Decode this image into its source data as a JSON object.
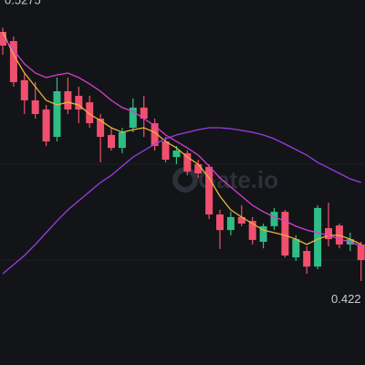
{
  "chart_data": {
    "type": "candlestick",
    "watermark": "Gate.io",
    "annotations": [
      "0.5275",
      "0.422"
    ],
    "ylim": [
      0.387,
      0.539
    ],
    "up_color": "#2ebd85",
    "down_color": "#f0506e",
    "categories": [
      null,
      null,
      null,
      null,
      null,
      null,
      null,
      null,
      null,
      null,
      null,
      null,
      null,
      null,
      null,
      null,
      null,
      null,
      null,
      null,
      null,
      null,
      null,
      null,
      null,
      null,
      null,
      null,
      null,
      null,
      null,
      null,
      null,
      null
    ],
    "open": [
      0.5257,
      0.5219,
      0.5056,
      0.4972,
      0.4934,
      0.482,
      0.501,
      0.4991,
      0.4964,
      0.4896,
      0.4828,
      0.4774,
      0.4858,
      0.4942,
      0.4877,
      0.4801,
      0.4736,
      0.4752,
      0.4706,
      0.4695,
      0.4497,
      0.4432,
      0.4486,
      0.447,
      0.4383,
      0.4448,
      0.4508,
      0.4318,
      0.4345,
      0.428,
      0.444,
      0.4451,
      0.4372,
      0.4372
    ],
    "high": [
      0.5275,
      0.5238,
      0.5086,
      0.5048,
      0.4953,
      0.5067,
      0.5067,
      0.5029,
      0.4991,
      0.4915,
      0.4858,
      0.4858,
      0.498,
      0.4991,
      0.4896,
      0.482,
      0.4782,
      0.4763,
      0.4725,
      0.4706,
      0.4516,
      0.4508,
      0.4535,
      0.4486,
      0.4459,
      0.4524,
      0.4516,
      0.441,
      0.4364,
      0.4535,
      0.4546,
      0.4459,
      0.4421,
      0.4383
    ],
    "low": [
      0.5162,
      0.5029,
      0.4915,
      0.4896,
      0.4782,
      0.4801,
      0.4915,
      0.4877,
      0.4858,
      0.4714,
      0.4763,
      0.4752,
      0.4839,
      0.482,
      0.4763,
      0.4714,
      0.4706,
      0.466,
      0.4649,
      0.4478,
      0.4353,
      0.441,
      0.4448,
      0.4372,
      0.4356,
      0.4432,
      0.4318,
      0.4303,
      0.425,
      0.4269,
      0.4364,
      0.4356,
      0.4345,
      0.422
    ],
    "close": [
      0.52,
      0.5048,
      0.4972,
      0.4915,
      0.4801,
      0.501,
      0.4934,
      0.4934,
      0.4877,
      0.482,
      0.4774,
      0.4839,
      0.4942,
      0.4896,
      0.4782,
      0.4725,
      0.4763,
      0.4676,
      0.4668,
      0.4497,
      0.4432,
      0.4486,
      0.4459,
      0.4391,
      0.4448,
      0.4508,
      0.4326,
      0.4394,
      0.428,
      0.4524,
      0.4394,
      0.4372,
      0.4394,
      0.4307
    ],
    "series": [
      {
        "color": "#e8b53c",
        "values": [
          0.5257,
          0.5162,
          0.5086,
          0.5029,
          0.4972,
          0.4953,
          0.4964,
          0.4953,
          0.4915,
          0.4888,
          0.4858,
          0.4839,
          0.485,
          0.4858,
          0.4839,
          0.4801,
          0.4774,
          0.4736,
          0.4706,
          0.4649,
          0.4573,
          0.4516,
          0.4486,
          0.4459,
          0.4432,
          0.4421,
          0.441,
          0.4394,
          0.4372,
          0.4394,
          0.441,
          0.441,
          0.4394,
          0.4372
        ]
      },
      {
        "color": "#d63fd0",
        "values": [
          0.5238,
          0.5181,
          0.5124,
          0.5086,
          0.5067,
          0.5078,
          0.5086,
          0.5067,
          0.504,
          0.501,
          0.4972,
          0.4942,
          0.4926,
          0.4896,
          0.4866,
          0.4828,
          0.4801,
          0.4774,
          0.4744,
          0.4698,
          0.4649,
          0.4611,
          0.4573,
          0.4535,
          0.4508,
          0.4486,
          0.447,
          0.4448,
          0.4432,
          0.4421,
          0.441,
          0.4394,
          0.4383,
          0.4364
        ]
      },
      {
        "color": "#9a3ce6",
        "values": [
          0.425,
          0.4288,
          0.4326,
          0.4372,
          0.4421,
          0.447,
          0.4516,
          0.4554,
          0.4592,
          0.463,
          0.466,
          0.4698,
          0.4736,
          0.4763,
          0.479,
          0.4812,
          0.4828,
          0.4839,
          0.485,
          0.4858,
          0.4858,
          0.4854,
          0.4847,
          0.4839,
          0.4828,
          0.4812,
          0.479,
          0.4767,
          0.4744,
          0.4714,
          0.4691,
          0.4668,
          0.4645,
          0.463
        ]
      }
    ]
  }
}
